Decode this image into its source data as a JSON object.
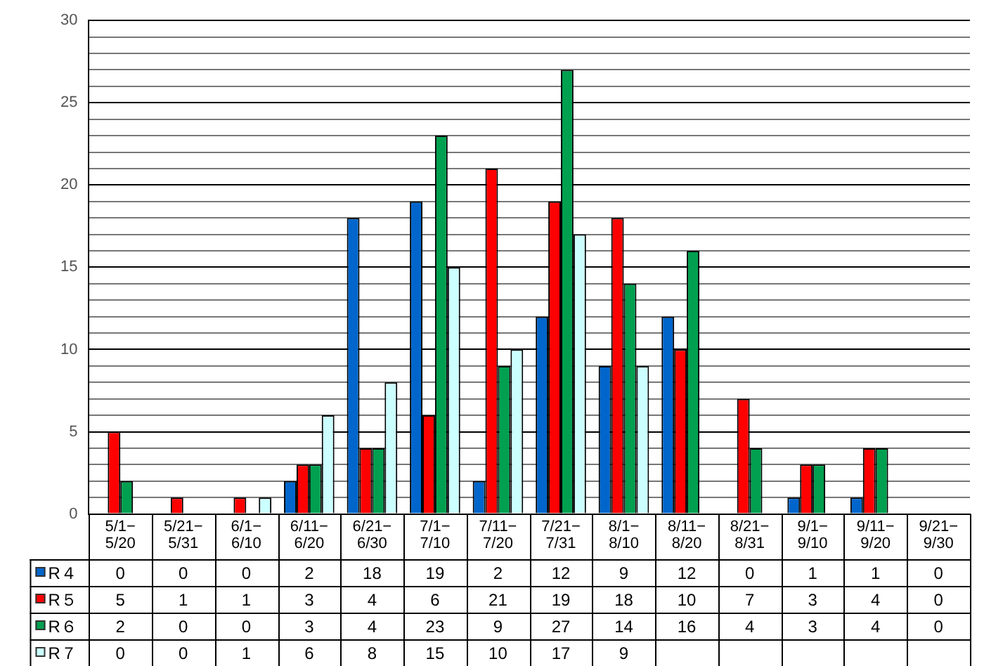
{
  "chart_data": {
    "type": "bar",
    "categories": [
      "5/1−\n5/20",
      "5/21−\n5/31",
      "6/1−\n6/10",
      "6/11−\n6/20",
      "6/21−\n6/30",
      "7/1−\n7/10",
      "7/11−\n7/20",
      "7/21−\n7/31",
      "8/1−\n8/10",
      "8/11−\n8/20",
      "8/21−\n8/31",
      "9/1−\n9/10",
      "9/11−\n9/20",
      "9/21−\n9/30"
    ],
    "series": [
      {
        "name": "R４",
        "color": "#0066cc",
        "values": [
          0,
          0,
          0,
          2,
          18,
          19,
          2,
          12,
          9,
          12,
          0,
          1,
          1,
          0
        ]
      },
      {
        "name": "R５",
        "color": "#ff0000",
        "values": [
          5,
          1,
          1,
          3,
          4,
          6,
          21,
          19,
          18,
          10,
          7,
          3,
          4,
          0
        ]
      },
      {
        "name": "R６",
        "color": "#00a050",
        "values": [
          2,
          0,
          0,
          3,
          4,
          23,
          9,
          27,
          14,
          16,
          4,
          3,
          4,
          0
        ]
      },
      {
        "name": "R７",
        "color": "#ccffff",
        "values": [
          0,
          0,
          1,
          6,
          8,
          15,
          10,
          17,
          9,
          null,
          null,
          null,
          null,
          null
        ]
      }
    ],
    "ylim": [
      0,
      30
    ],
    "yticks": [
      0,
      {
        "value": 1,
        "label": null
      },
      {
        "value": 2,
        "label": null
      },
      {
        "value": 3,
        "label": null
      },
      {
        "value": 4,
        "label": null
      },
      5,
      {
        "value": 6,
        "label": null
      },
      {
        "value": 7,
        "label": null
      },
      {
        "value": 8,
        "label": null
      },
      {
        "value": 9,
        "label": null
      },
      10,
      {
        "value": 11,
        "label": null
      },
      {
        "value": 12,
        "label": null
      },
      {
        "value": 13,
        "label": null
      },
      {
        "value": 14,
        "label": null
      },
      15,
      {
        "value": 16,
        "label": null
      },
      {
        "value": 17,
        "label": null
      },
      {
        "value": 18,
        "label": null
      },
      {
        "value": 19,
        "label": null
      },
      20,
      {
        "value": 21,
        "label": null
      },
      {
        "value": 22,
        "label": null
      },
      {
        "value": 23,
        "label": null
      },
      {
        "value": 24,
        "label": null
      },
      25,
      {
        "value": 26,
        "label": null
      },
      {
        "value": 27,
        "label": null
      },
      {
        "value": 28,
        "label": null
      },
      {
        "value": 29,
        "label": null
      },
      30
    ],
    "grid": "y",
    "legend": "bottom left",
    "data_labels": true
  }
}
